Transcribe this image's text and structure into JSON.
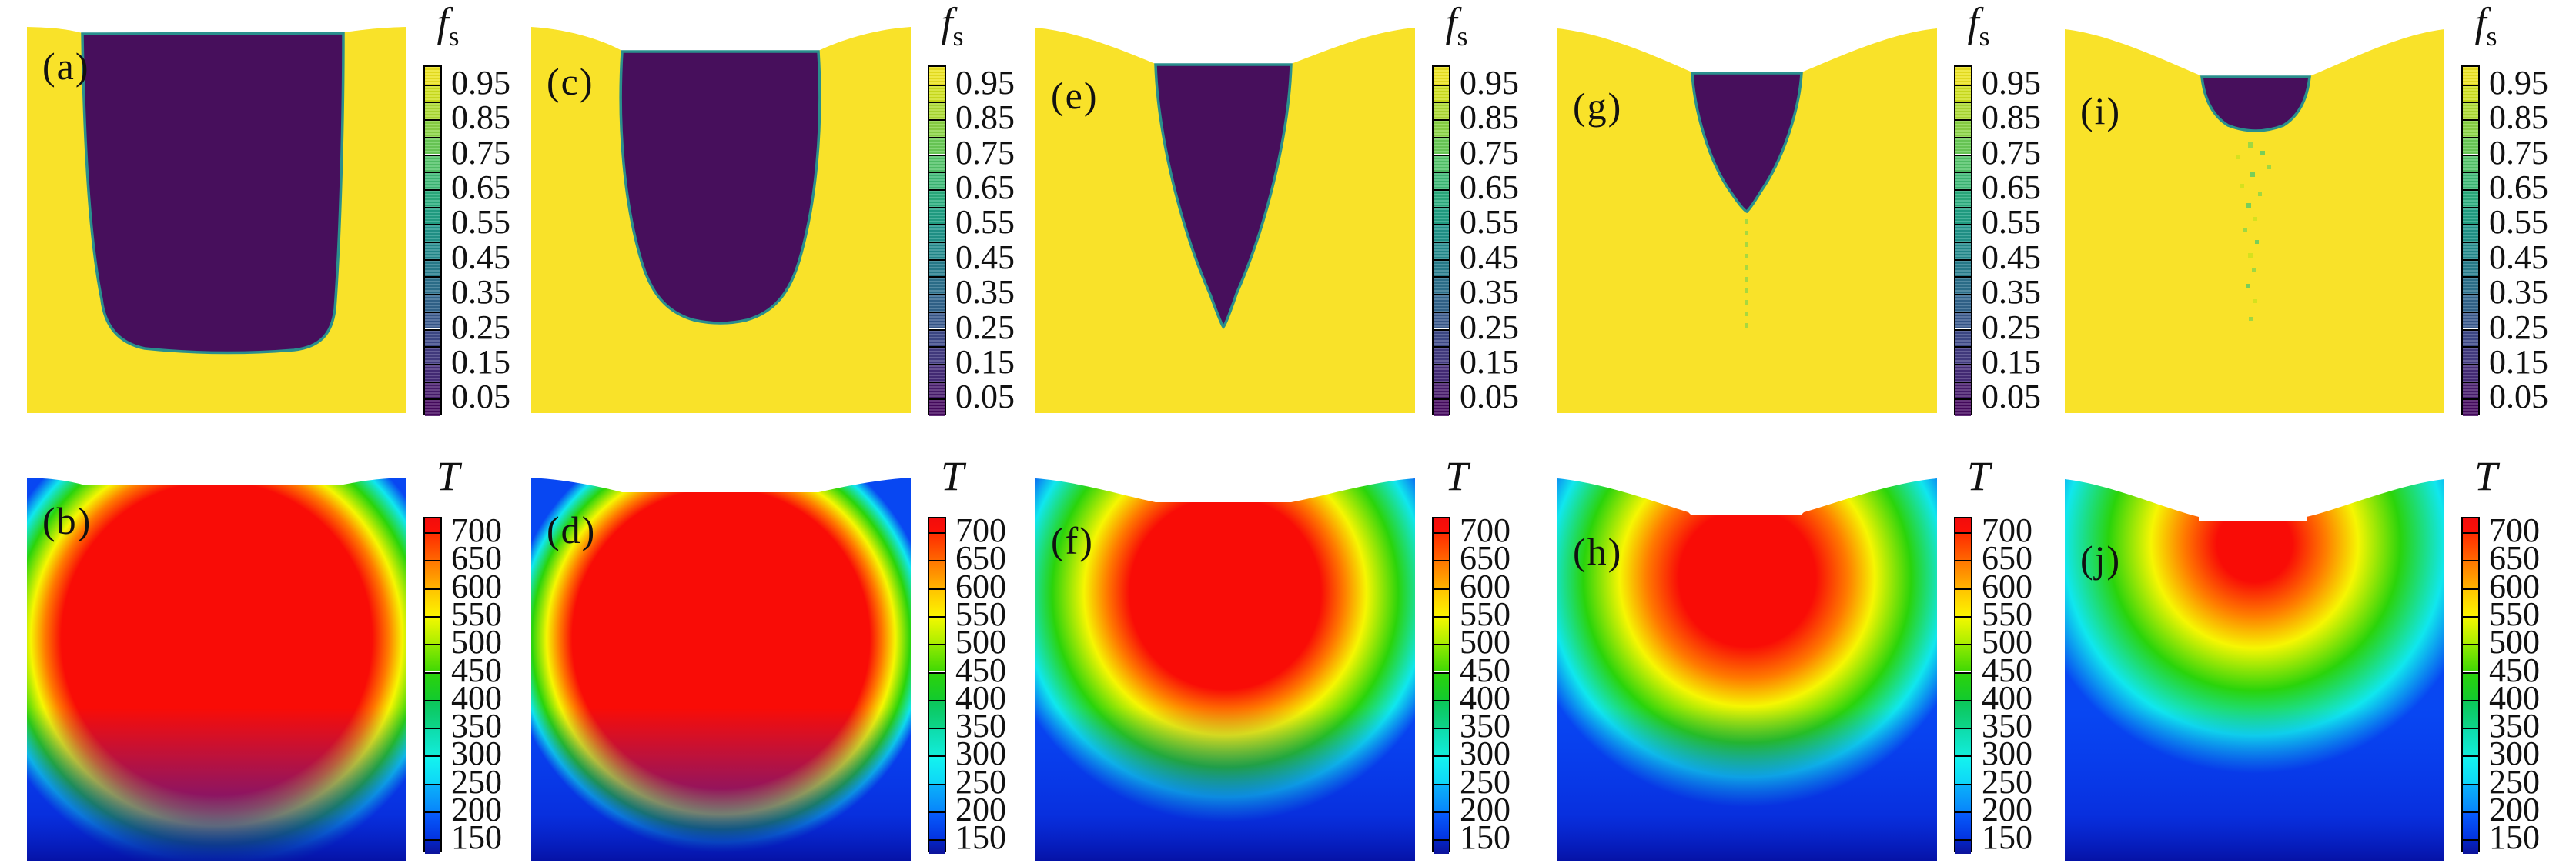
{
  "figure": {
    "columns": [
      {
        "top_label": "(a)",
        "bottom_label": "(b)"
      },
      {
        "top_label": "(c)",
        "bottom_label": "(d)"
      },
      {
        "top_label": "(e)",
        "bottom_label": "(f)"
      },
      {
        "top_label": "(g)",
        "bottom_label": "(h)"
      },
      {
        "top_label": "(i)",
        "bottom_label": "(j)"
      }
    ],
    "colorbar_fs": {
      "title_main": "f",
      "title_sub": "s",
      "tick_labels": [
        "0.95",
        "0.85",
        "0.75",
        "0.65",
        "0.55",
        "0.45",
        "0.35",
        "0.25",
        "0.15",
        "0.05"
      ],
      "segment_colors": [
        "#ede41f",
        "#cfe11c",
        "#acdb31",
        "#8bd546",
        "#6ccd59",
        "#52c469",
        "#3cb975",
        "#2bae7f",
        "#22a286",
        "#21968b",
        "#238b8d",
        "#287e8e",
        "#2d728e",
        "#32658d",
        "#38588c",
        "#3e4a89",
        "#433c83",
        "#462c79",
        "#471b6d",
        "#45085f"
      ]
    },
    "colorbar_T": {
      "title": "T",
      "tick_labels": [
        "700",
        "650",
        "600",
        "550",
        "500",
        "450",
        "400",
        "350",
        "300",
        "250",
        "200",
        "150"
      ],
      "segment_colors": [
        [
          "#f20c0c",
          "#fb1107"
        ],
        [
          "#ff2d00",
          "#ff6600"
        ],
        [
          "#ff7800",
          "#ffb300"
        ],
        [
          "#ffc400",
          "#fcf400"
        ],
        [
          "#f2f800",
          "#aaee00"
        ],
        [
          "#8fea00",
          "#3fd804"
        ],
        [
          "#2bd30c",
          "#12ca2e"
        ],
        [
          "#0cc759",
          "#0dd489"
        ],
        [
          "#0edcab",
          "#12ecd7"
        ],
        [
          "#14f4ee",
          "#0ed5f8"
        ],
        [
          "#0bb0fa",
          "#0885fb"
        ],
        [
          "#065cfc",
          "#0433e0"
        ],
        [
          "#0325c4",
          "#0d149b"
        ]
      ]
    },
    "palette": {
      "solid_yellow": "#f9e229",
      "liquid_purple": "#470f5c",
      "interface_teal": "#2a8f8d",
      "mushy_green": "#8fd546",
      "t_hot_red": "#f90c06",
      "t_orange": "#ff7a00",
      "t_yellow": "#f6f602",
      "t_green": "#2ad40b",
      "t_cyan": "#10e7ee",
      "t_blue": "#0847f2",
      "t_cold_darkblue": "#0b1bbf"
    }
  },
  "chart_data": {
    "type": "heatmap",
    "layout": "2 rows x 5 columns of field contour plots; columns left to right show successive solidification stages; top row = solid fraction f_s (viridis colormap), bottom row = temperature T (rainbow colormap); each panel has its own discrete colorbar on the right; grid off; top free surface sinks progressively deeper from left to right",
    "colorbars": [
      {
        "title": "f_s",
        "ticks": [
          0.95,
          0.85,
          0.75,
          0.65,
          0.55,
          0.45,
          0.35,
          0.25,
          0.15,
          0.05
        ],
        "range": [
          0,
          1
        ],
        "segments": 20,
        "colormap": "viridis",
        "position": "right of each top-row panel"
      },
      {
        "title": "T",
        "ticks": [
          700,
          650,
          600,
          550,
          500,
          450,
          400,
          350,
          300,
          250,
          200,
          150
        ],
        "range": [
          125,
          725
        ],
        "segments": 13,
        "colormap": "rainbow",
        "position": "right of each bottom-row panel"
      }
    ],
    "panels": [
      {
        "panel": "(a)",
        "row": 1,
        "col": 1,
        "field": "f_s",
        "description": "large liquid pool (f_s≈0.05, dark purple) spanning ~70% of mold width from the free surface down to ~82% of depth, slightly tapered with rounded bottom corners; surrounding solid shell f_s≈0.95 (yellow); thin teal interface band",
        "pool_top_width_frac": 0.69,
        "pool_depth_frac": 0.82
      },
      {
        "panel": "(b)",
        "row": 2,
        "col": 1,
        "field": "T",
        "description": "almost entire casting at T≈700 (red); thin yellow then green rim along side walls; cyan-blue band and dark-blue corners (T≈150-250) along the bottom",
        "t_core": 700,
        "t_bottom_edge": 150
      },
      {
        "panel": "(c)",
        "row": 1,
        "col": 2,
        "field": "f_s",
        "description": "narrower U-shaped liquid pool, ~52% of width at top, rounded bottom reaching ~76% of depth",
        "pool_top_width_frac": 0.52,
        "pool_depth_frac": 0.76
      },
      {
        "panel": "(d)",
        "row": 2,
        "col": 2,
        "field": "T",
        "description": "red core (T≈700) still wide but detached from side walls; green-cyan-blue layers thicken along sides and bottom; deeper surface dip at top center",
        "t_core": 700,
        "t_bottom_edge": 150
      },
      {
        "panel": "(e)",
        "row": 1,
        "col": 3,
        "field": "f_s",
        "description": "V-shaped liquid pool ~36% of width at top tapering to a point at ~76% of depth; free surface dips ~10% at center",
        "pool_top_width_frac": 0.36,
        "pool_depth_frac": 0.76
      },
      {
        "panel": "(f)",
        "row": 2,
        "col": 3,
        "field": "T",
        "description": "red core (T≈700) confined to upper-central region down to ~55% depth; yellow/green halo; wide cyan-blue margins and bottom",
        "t_core": 700,
        "t_bottom_edge": 150
      },
      {
        "panel": "(g)",
        "row": 1,
        "col": 4,
        "field": "f_s",
        "description": "small jagged V-shaped pool ~29% of width, tip at ~42% depth, with a thin green mushy-zone trail extending to ~73% depth below the tip; deep central surface depression",
        "pool_top_width_frac": 0.29,
        "pool_depth_frac": 0.42,
        "mushy_trail_depth_frac": 0.73
      },
      {
        "panel": "(h)",
        "row": 2,
        "col": 4,
        "field": "T",
        "description": "red zone (T≈700) only in upper-center beneath the sunken surface, to ~35% depth; broad orange-yellow-green gradient below; blue dominates sides and lower half",
        "t_core": 700,
        "t_bottom_edge": 150
      },
      {
        "panel": "(i)",
        "row": 1,
        "col": 5,
        "field": "f_s",
        "description": "shallow bowl-shaped residual pool ~29% of width reaching only ~21% depth under a deep surface depression; scattered green mushy speckles trail down to ~72% depth",
        "pool_top_width_frac": 0.29,
        "pool_depth_frac": 0.21,
        "mushy_trail_depth_frac": 0.72
      },
      {
        "panel": "(j)",
        "row": 2,
        "col": 5,
        "field": "T",
        "description": "only a small red cap (T≈700) right below the stepped surface notch to ~18% depth; center of casting orange-yellow (~550-600); green middle and cyan-blue outer/lower regions",
        "t_core": 700,
        "t_bottom_edge": 150
      }
    ]
  }
}
